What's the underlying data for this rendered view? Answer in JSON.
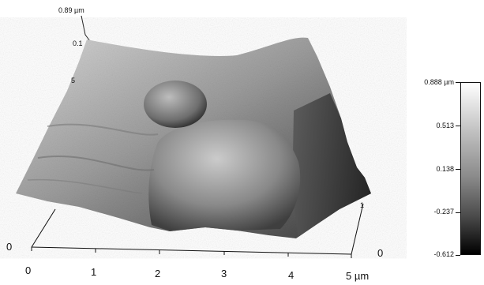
{
  "image": {
    "subject": "AFM 3D surface topography render",
    "peak_label": "0.89 µm",
    "z_axis_ticks": [
      "0.1",
      "5"
    ],
    "x_axis": {
      "ticks": [
        "0",
        "1",
        "2",
        "3",
        "4",
        "5 µm"
      ]
    },
    "y_axis": {
      "ticks": [
        "0",
        "1",
        "0"
      ]
    },
    "colorbar": {
      "labels": [
        "0.888 µm",
        "0.513",
        "0.138",
        "-0.237",
        "-0.612"
      ],
      "gradient_top": "#ffffff",
      "gradient_bottom": "#000000"
    },
    "colors": {
      "background": "#ffffff",
      "surface_light": "#cfcfcf",
      "surface_mid": "#8c8c8c",
      "surface_dark": "#2f2f2f",
      "axis": "#111111"
    }
  }
}
